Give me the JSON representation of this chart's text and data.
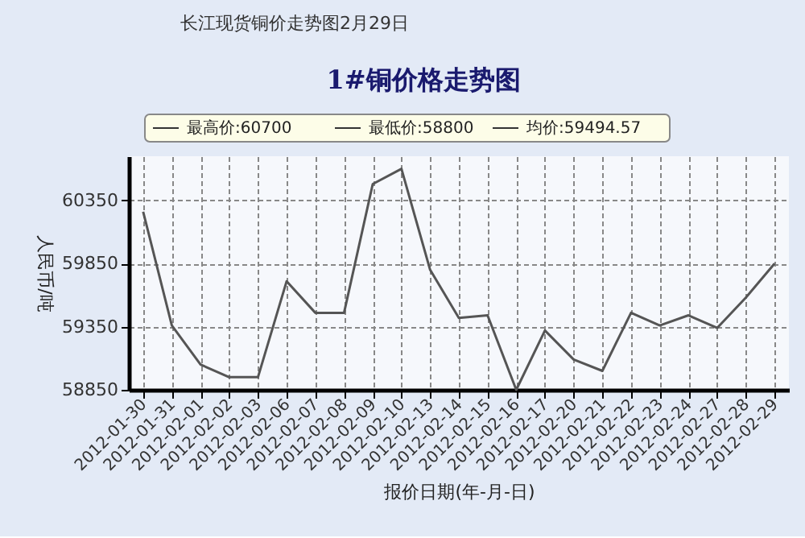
{
  "chart_data": {
    "type": "line",
    "subtitle": "长江现货铜价走势图2月29日",
    "title": "1#铜价格走势图",
    "xlabel": "报价日期(年-月-日)",
    "ylabel": "人民币/吨",
    "annotations": [
      "最高价:60700",
      "最低价:58800",
      "均价:59494.57"
    ],
    "categories": [
      "2012-01-30",
      "2012-01-31",
      "2012-02-01",
      "2012-02-02",
      "2012-02-03",
      "2012-02-06",
      "2012-02-07",
      "2012-02-08",
      "2012-02-09",
      "2012-02-10",
      "2012-02-13",
      "2012-02-14",
      "2012-02-15",
      "2012-02-16",
      "2012-02-17",
      "2012-02-20",
      "2012-02-21",
      "2012-02-22",
      "2012-02-23",
      "2012-02-24",
      "2012-02-27",
      "2012-02-28",
      "2012-02-29"
    ],
    "series": [
      {
        "color": "#555555",
        "values": [
          60260,
          59360,
          59050,
          58950,
          58950,
          59710,
          59460,
          59460,
          60480,
          60600,
          59800,
          59420,
          59440,
          58850,
          59320,
          59090,
          59000,
          59460,
          59360,
          59440,
          59340,
          59580,
          59850
        ]
      }
    ],
    "ylim": [
      58850,
      60700
    ],
    "yticks": [
      58850,
      59350,
      59850,
      60350
    ],
    "grid": true,
    "line_style": "solid",
    "marker": "none"
  }
}
